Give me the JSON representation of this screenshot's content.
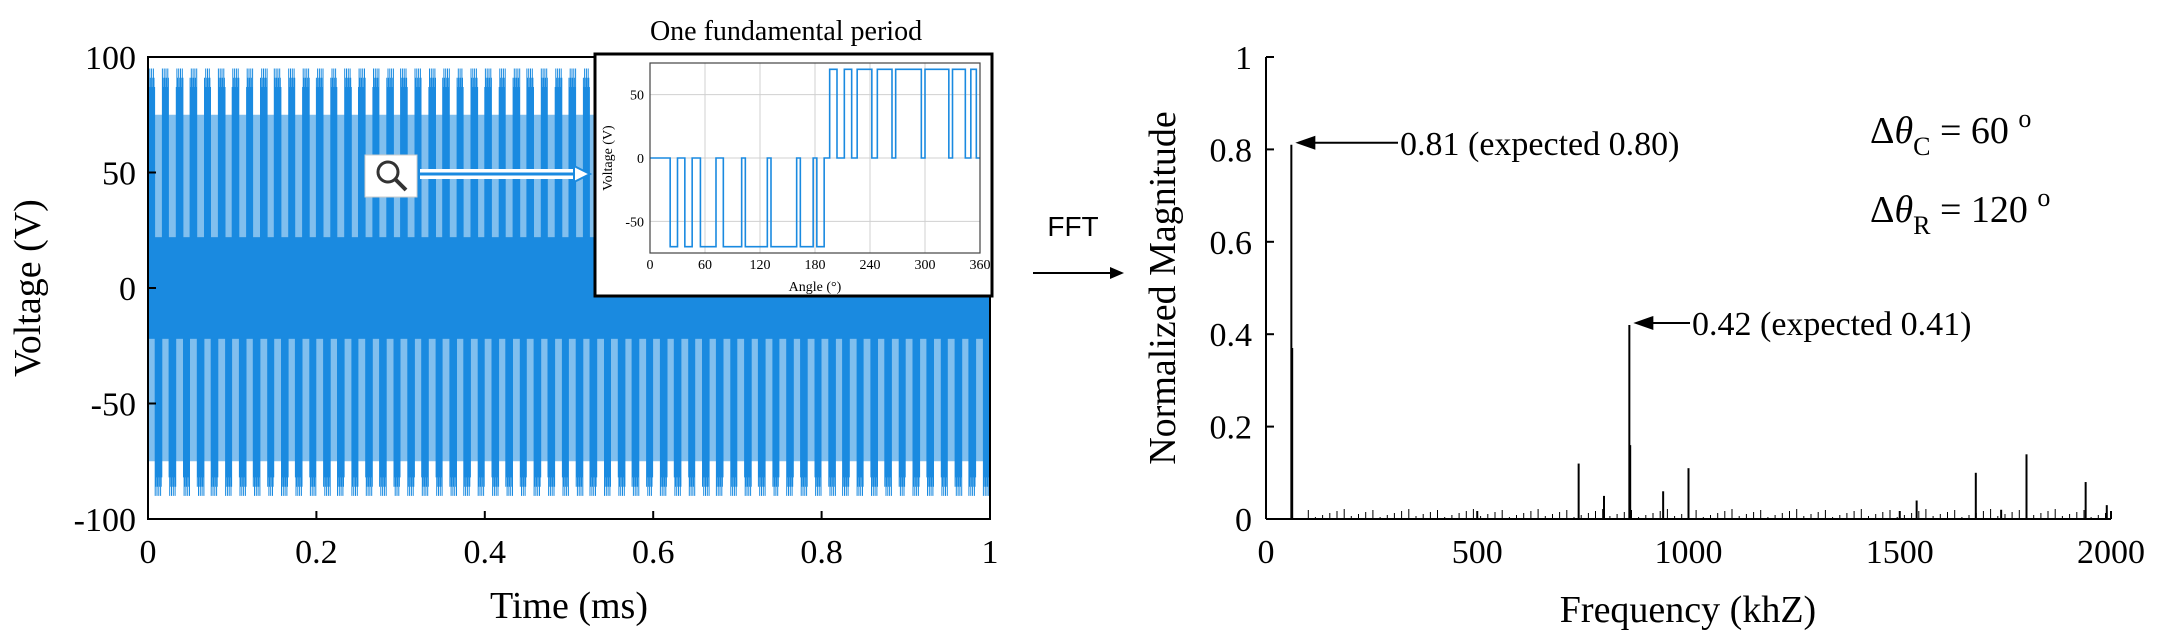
{
  "chart_data": [
    {
      "type": "line",
      "xlabel": "Time (ms)",
      "ylabel": "Voltage (V)",
      "xlim": [
        0,
        1
      ],
      "ylim": [
        -100,
        100
      ],
      "xticks": [
        "0",
        "0.2",
        "0.4",
        "0.6",
        "0.8",
        "1"
      ],
      "yticks": [
        "100",
        "50",
        "0",
        "-50",
        "-100"
      ],
      "signal": {
        "levels": [
          -75,
          0,
          75
        ],
        "peak_positive": 95,
        "peak_negative": -90,
        "color": "#1a8ae0",
        "fundamental_frequency_khz": 60
      },
      "grid": false
    },
    {
      "type": "line",
      "title": "One fundamental period",
      "xlabel": "Angle (°)",
      "ylabel": "Voltage (V)",
      "xlim": [
        0,
        360
      ],
      "ylim": [
        -75,
        75
      ],
      "xticks": [
        "0",
        "60",
        "120",
        "180",
        "240",
        "300",
        "360"
      ],
      "yticks": [
        "50",
        "0",
        "-50"
      ],
      "levels": [
        -70,
        0,
        70
      ],
      "grid": true
    },
    {
      "type": "bar",
      "xlabel": "Frequency (khZ)",
      "ylabel": "Normalized Magnitude",
      "xlim": [
        0,
        2000
      ],
      "ylim": [
        0,
        1
      ],
      "xticks": [
        "0",
        "500",
        "1000",
        "1500",
        "2000"
      ],
      "yticks": [
        "1",
        "0.8",
        "0.6",
        "0.4",
        "0.2",
        "0"
      ],
      "x": [
        60,
        740,
        800,
        860,
        940,
        1000,
        1540,
        1680,
        1740,
        1800,
        1940,
        1990
      ],
      "values": [
        0.81,
        0.12,
        0.05,
        0.42,
        0.06,
        0.11,
        0.04,
        0.1,
        0.02,
        0.14,
        0.08,
        0.03
      ],
      "annotations": [
        {
          "x": 60,
          "y": 0.81,
          "text": "0.81 (expected 0.80)"
        },
        {
          "x": 860,
          "y": 0.42,
          "text": "0.42 (expected 0.41)"
        }
      ],
      "grid": false
    }
  ],
  "labels": {
    "fft": "FFT",
    "delta_c": "60",
    "delta_r": "120",
    "degree": "o"
  }
}
